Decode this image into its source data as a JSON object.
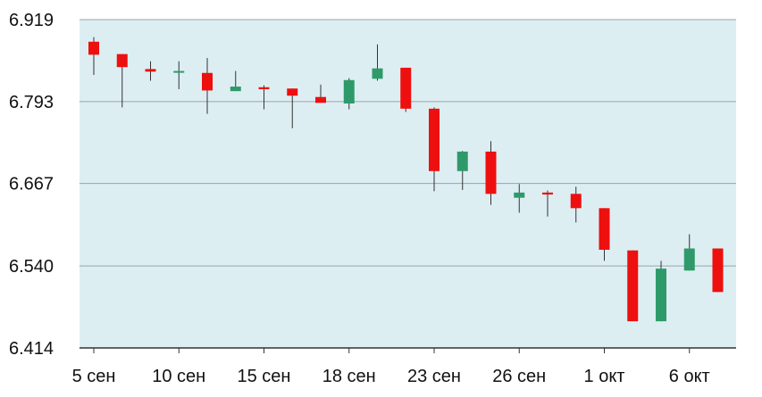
{
  "colors": {
    "background": "#ddeef3",
    "gridline": "#9aa3a8",
    "axis": "#333333",
    "up": "#2e9a6a",
    "down": "#ee0f0f",
    "wick": "#333333"
  },
  "chart_data": {
    "type": "candlestick",
    "title": "",
    "xlabel": "",
    "ylabel": "",
    "grid": true,
    "legend": "none",
    "ylim": [
      6.414,
      6.919
    ],
    "yticks": [
      "6.919",
      "6.793",
      "6.667",
      "6.540",
      "6.414"
    ],
    "xticks": [
      {
        "index": 0,
        "label": "5 сен"
      },
      {
        "index": 3,
        "label": "10 сен"
      },
      {
        "index": 6,
        "label": "15 сен"
      },
      {
        "index": 9,
        "label": "18 сен"
      },
      {
        "index": 12,
        "label": "23 сен"
      },
      {
        "index": 15,
        "label": "26 сен"
      },
      {
        "index": 18,
        "label": "1 окт"
      },
      {
        "index": 21,
        "label": "6 окт"
      }
    ],
    "candles": [
      {
        "open": 6.885,
        "close": 6.865,
        "high": 6.892,
        "low": 6.834
      },
      {
        "open": 6.866,
        "close": 6.846,
        "high": 6.866,
        "low": 6.784
      },
      {
        "open": 6.843,
        "close": 6.839,
        "high": 6.855,
        "low": 6.825
      },
      {
        "open": 6.839,
        "close": 6.84,
        "high": 6.855,
        "low": 6.812
      },
      {
        "open": 6.837,
        "close": 6.81,
        "high": 6.86,
        "low": 6.774
      },
      {
        "open": 6.809,
        "close": 6.816,
        "high": 6.84,
        "low": 6.809
      },
      {
        "open": 6.815,
        "close": 6.812,
        "high": 6.818,
        "low": 6.781
      },
      {
        "open": 6.813,
        "close": 6.802,
        "high": 6.813,
        "low": 6.752
      },
      {
        "open": 6.8,
        "close": 6.791,
        "high": 6.819,
        "low": 6.791
      },
      {
        "open": 6.79,
        "close": 6.826,
        "high": 6.829,
        "low": 6.781
      },
      {
        "open": 6.828,
        "close": 6.844,
        "high": 6.881,
        "low": 6.825
      },
      {
        "open": 6.845,
        "close": 6.782,
        "high": 6.845,
        "low": 6.777
      },
      {
        "open": 6.782,
        "close": 6.686,
        "high": 6.784,
        "low": 6.655
      },
      {
        "open": 6.686,
        "close": 6.716,
        "high": 6.717,
        "low": 6.657
      },
      {
        "open": 6.716,
        "close": 6.651,
        "high": 6.732,
        "low": 6.634
      },
      {
        "open": 6.645,
        "close": 6.653,
        "high": 6.666,
        "low": 6.622
      },
      {
        "open": 6.653,
        "close": 6.65,
        "high": 6.656,
        "low": 6.616
      },
      {
        "open": 6.651,
        "close": 6.629,
        "high": 6.662,
        "low": 6.607
      },
      {
        "open": 6.629,
        "close": 6.565,
        "high": 6.629,
        "low": 6.548
      },
      {
        "open": 6.564,
        "close": 6.455,
        "high": 6.564,
        "low": 6.455
      },
      {
        "open": 6.455,
        "close": 6.536,
        "high": 6.548,
        "low": 6.455
      },
      {
        "open": 6.533,
        "close": 6.567,
        "high": 6.589,
        "low": 6.533
      },
      {
        "open": 6.567,
        "close": 6.5,
        "high": 6.567,
        "low": 6.5
      }
    ]
  }
}
